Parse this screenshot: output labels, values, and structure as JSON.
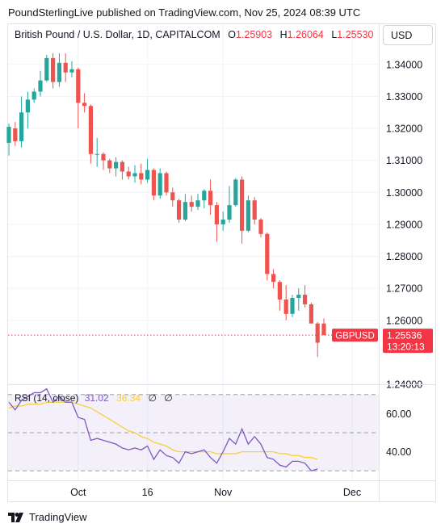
{
  "header": {
    "publisher_line": "PoundSterlingLive published on TradingView.com, Nov 25, 2024 08:39 UTC"
  },
  "legend": {
    "symbol": "British Pound / U.S. Dollar, 1D, CAPITALCOM",
    "open_label": "O",
    "open_value": "1.25903",
    "high_label": "H",
    "high_value": "1.26064",
    "low_label": "L",
    "low_value": "1.25530"
  },
  "currency_selector": {
    "label": "USD"
  },
  "price_tag": {
    "symbol": "GBPUSD",
    "price": "1.25536",
    "countdown": "13:20:13"
  },
  "rsi_legend": {
    "label": "RSI (14, close)",
    "rsi_value": "31.02",
    "ma_value": "36.34",
    "extra1": "∅",
    "extra2": "∅"
  },
  "footer": {
    "brand": "TradingView"
  },
  "colors": {
    "up": "#26a69a",
    "down": "#ef5350",
    "rsi_line": "#7e57c2",
    "rsi_ma": "#f7d03c",
    "rsi_band": "#7e57c2",
    "price_line": "#f23645"
  },
  "chart_data": [
    {
      "type": "candlestick",
      "title": "British Pound / U.S. Dollar, 1D, CAPITALCOM",
      "ylim": [
        1.24,
        1.345
      ],
      "y_ticks": [
        "1.34000",
        "1.33000",
        "1.32000",
        "1.31000",
        "1.30000",
        "1.29000",
        "1.28000",
        "1.27000",
        "1.26000",
        "1.24000"
      ],
      "x_ticks": [
        "Oct",
        "16",
        "Nov",
        "Dec"
      ],
      "last_price": 1.25536,
      "candles": [
        {
          "date": "2024-09-16",
          "o": 1.3155,
          "h": 1.3215,
          "l": 1.3115,
          "c": 1.3205
        },
        {
          "date": "2024-09-17",
          "o": 1.32,
          "h": 1.322,
          "l": 1.3145,
          "c": 1.316
        },
        {
          "date": "2024-09-18",
          "o": 1.316,
          "h": 1.33,
          "l": 1.314,
          "c": 1.325
        },
        {
          "date": "2024-09-19",
          "o": 1.325,
          "h": 1.3315,
          "l": 1.32,
          "c": 1.329
        },
        {
          "date": "2024-09-20",
          "o": 1.329,
          "h": 1.3325,
          "l": 1.328,
          "c": 1.3315
        },
        {
          "date": "2024-09-23",
          "o": 1.3315,
          "h": 1.338,
          "l": 1.33,
          "c": 1.335
        },
        {
          "date": "2024-09-24",
          "o": 1.335,
          "h": 1.343,
          "l": 1.3345,
          "c": 1.342
        },
        {
          "date": "2024-09-25",
          "o": 1.342,
          "h": 1.3435,
          "l": 1.3325,
          "c": 1.3345
        },
        {
          "date": "2024-09-26",
          "o": 1.3345,
          "h": 1.3435,
          "l": 1.333,
          "c": 1.3405
        },
        {
          "date": "2024-09-27",
          "o": 1.3405,
          "h": 1.3435,
          "l": 1.3345,
          "c": 1.3375
        },
        {
          "date": "2024-09-30",
          "o": 1.3375,
          "h": 1.341,
          "l": 1.336,
          "c": 1.3385
        },
        {
          "date": "2024-10-01",
          "o": 1.3385,
          "h": 1.339,
          "l": 1.32,
          "c": 1.328
        },
        {
          "date": "2024-10-02",
          "o": 1.328,
          "h": 1.331,
          "l": 1.325,
          "c": 1.327
        },
        {
          "date": "2024-10-03",
          "o": 1.327,
          "h": 1.3275,
          "l": 1.309,
          "c": 1.312
        },
        {
          "date": "2024-10-04",
          "o": 1.312,
          "h": 1.317,
          "l": 1.308,
          "c": 1.312
        },
        {
          "date": "2024-10-07",
          "o": 1.312,
          "h": 1.3125,
          "l": 1.307,
          "c": 1.31
        },
        {
          "date": "2024-10-08",
          "o": 1.31,
          "h": 1.3105,
          "l": 1.306,
          "c": 1.3075
        },
        {
          "date": "2024-10-09",
          "o": 1.3075,
          "h": 1.311,
          "l": 1.305,
          "c": 1.3095
        },
        {
          "date": "2024-10-10",
          "o": 1.3095,
          "h": 1.31,
          "l": 1.304,
          "c": 1.3065
        },
        {
          "date": "2024-10-11",
          "o": 1.3065,
          "h": 1.308,
          "l": 1.304,
          "c": 1.305
        },
        {
          "date": "2024-10-14",
          "o": 1.305,
          "h": 1.3085,
          "l": 1.303,
          "c": 1.306
        },
        {
          "date": "2024-10-15",
          "o": 1.306,
          "h": 1.309,
          "l": 1.3025,
          "c": 1.304
        },
        {
          "date": "2024-10-16",
          "o": 1.304,
          "h": 1.3105,
          "l": 1.303,
          "c": 1.307
        },
        {
          "date": "2024-10-17",
          "o": 1.307,
          "h": 1.3075,
          "l": 1.2975,
          "c": 1.299
        },
        {
          "date": "2024-10-18",
          "o": 1.299,
          "h": 1.3075,
          "l": 1.298,
          "c": 1.306
        },
        {
          "date": "2024-10-21",
          "o": 1.306,
          "h": 1.3065,
          "l": 1.299,
          "c": 1.3
        },
        {
          "date": "2024-10-22",
          "o": 1.3,
          "h": 1.3015,
          "l": 1.2955,
          "c": 1.2975
        },
        {
          "date": "2024-10-23",
          "o": 1.2975,
          "h": 1.298,
          "l": 1.2905,
          "c": 1.2915
        },
        {
          "date": "2024-10-24",
          "o": 1.2915,
          "h": 1.2995,
          "l": 1.291,
          "c": 1.297
        },
        {
          "date": "2024-10-25",
          "o": 1.297,
          "h": 1.299,
          "l": 1.294,
          "c": 1.2955
        },
        {
          "date": "2024-10-28",
          "o": 1.2955,
          "h": 1.2995,
          "l": 1.2945,
          "c": 1.2975
        },
        {
          "date": "2024-10-29",
          "o": 1.2975,
          "h": 1.301,
          "l": 1.295,
          "c": 1.3005
        },
        {
          "date": "2024-10-30",
          "o": 1.3005,
          "h": 1.304,
          "l": 1.293,
          "c": 1.296
        },
        {
          "date": "2024-10-31",
          "o": 1.296,
          "h": 1.297,
          "l": 1.2845,
          "c": 1.29
        },
        {
          "date": "2024-11-01",
          "o": 1.29,
          "h": 1.294,
          "l": 1.288,
          "c": 1.2915
        },
        {
          "date": "2024-11-04",
          "o": 1.2915,
          "h": 1.302,
          "l": 1.2905,
          "c": 1.296
        },
        {
          "date": "2024-11-05",
          "o": 1.296,
          "h": 1.3045,
          "l": 1.2955,
          "c": 1.304
        },
        {
          "date": "2024-11-06",
          "o": 1.304,
          "h": 1.305,
          "l": 1.284,
          "c": 1.288
        },
        {
          "date": "2024-11-07",
          "o": 1.288,
          "h": 1.299,
          "l": 1.2875,
          "c": 1.2975
        },
        {
          "date": "2024-11-08",
          "o": 1.2975,
          "h": 1.2985,
          "l": 1.29,
          "c": 1.2915
        },
        {
          "date": "2024-11-11",
          "o": 1.2915,
          "h": 1.292,
          "l": 1.286,
          "c": 1.287
        },
        {
          "date": "2024-11-12",
          "o": 1.287,
          "h": 1.2875,
          "l": 1.2725,
          "c": 1.2745
        },
        {
          "date": "2024-11-13",
          "o": 1.2745,
          "h": 1.276,
          "l": 1.27,
          "c": 1.272
        },
        {
          "date": "2024-11-14",
          "o": 1.272,
          "h": 1.2725,
          "l": 1.263,
          "c": 1.2665
        },
        {
          "date": "2024-11-15",
          "o": 1.2665,
          "h": 1.271,
          "l": 1.26,
          "c": 1.262
        },
        {
          "date": "2024-11-18",
          "o": 1.262,
          "h": 1.268,
          "l": 1.261,
          "c": 1.267
        },
        {
          "date": "2024-11-19",
          "o": 1.267,
          "h": 1.27,
          "l": 1.263,
          "c": 1.268
        },
        {
          "date": "2024-11-20",
          "o": 1.268,
          "h": 1.271,
          "l": 1.264,
          "c": 1.265
        },
        {
          "date": "2024-11-21",
          "o": 1.265,
          "h": 1.2655,
          "l": 1.259,
          "c": 1.259
        },
        {
          "date": "2024-11-22",
          "o": 1.259,
          "h": 1.2595,
          "l": 1.2485,
          "c": 1.253
        },
        {
          "date": "2024-11-25",
          "o": 1.259,
          "h": 1.2606,
          "l": 1.2553,
          "c": 1.2554
        }
      ]
    },
    {
      "type": "line",
      "title": "RSI (14, close)",
      "ylim": [
        25,
        75
      ],
      "y_ticks": [
        "60.00",
        "40.00"
      ],
      "bands": [
        30,
        50,
        70
      ],
      "series": [
        {
          "name": "RSI (14, close)",
          "values": [
            66,
            62,
            67,
            69,
            71,
            71,
            73,
            66,
            69,
            66,
            66,
            58,
            57,
            46,
            47,
            46,
            45,
            44,
            42,
            41,
            42,
            41,
            43,
            36,
            41,
            38,
            37,
            34,
            40,
            39,
            40,
            41,
            37,
            34,
            40,
            47,
            44,
            52,
            44,
            48,
            44,
            37,
            36,
            33,
            32,
            35,
            35,
            34,
            30,
            31
          ]
        },
        {
          "name": "MA",
          "values": [
            63,
            64,
            64,
            65,
            65,
            65,
            66,
            66,
            66,
            66,
            66,
            65,
            64,
            63,
            61,
            59,
            57,
            55,
            53,
            51,
            50,
            48,
            47,
            45,
            44,
            43,
            41,
            40,
            40,
            40,
            40,
            40,
            40,
            39,
            39,
            39,
            39,
            40,
            40,
            40,
            40,
            40,
            40,
            39,
            39,
            38,
            38,
            37,
            37,
            36
          ]
        }
      ]
    }
  ]
}
